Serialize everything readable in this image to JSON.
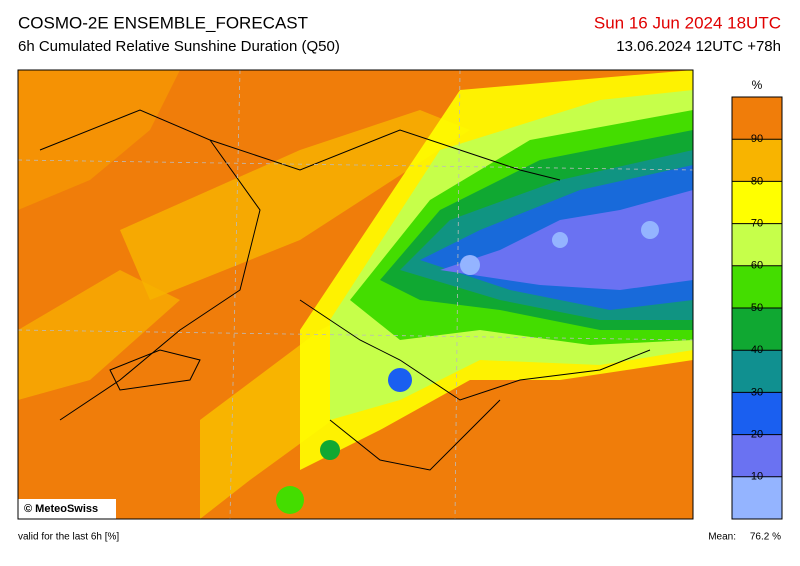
{
  "header": {
    "title": "COSMO-2E ENSEMBLE_FORECAST",
    "subtitle": "6h Cumulated Relative Sunshine Duration (Q50)",
    "valid_time": "Sun 16 Jun 2024 18UTC",
    "run": "13.06.2024 12UTC +78h"
  },
  "map": {
    "credit": "© MeteoSwiss"
  },
  "colorbar": {
    "unit": "%",
    "lim": [
      0,
      100
    ],
    "ticks": [
      10,
      20,
      30,
      40,
      50,
      60,
      70,
      80,
      90
    ],
    "colors": [
      "#94b4ff",
      "#6a72f2",
      "#1a5ff0",
      "#109090",
      "#10a832",
      "#44dd00",
      "#c6ff4a",
      "#ffff00",
      "#f8b400",
      "#f07d0a"
    ]
  },
  "footer": {
    "note": "valid for the last 6h [%]",
    "mean_label": "Mean:",
    "mean_value": "76.2 %"
  }
}
